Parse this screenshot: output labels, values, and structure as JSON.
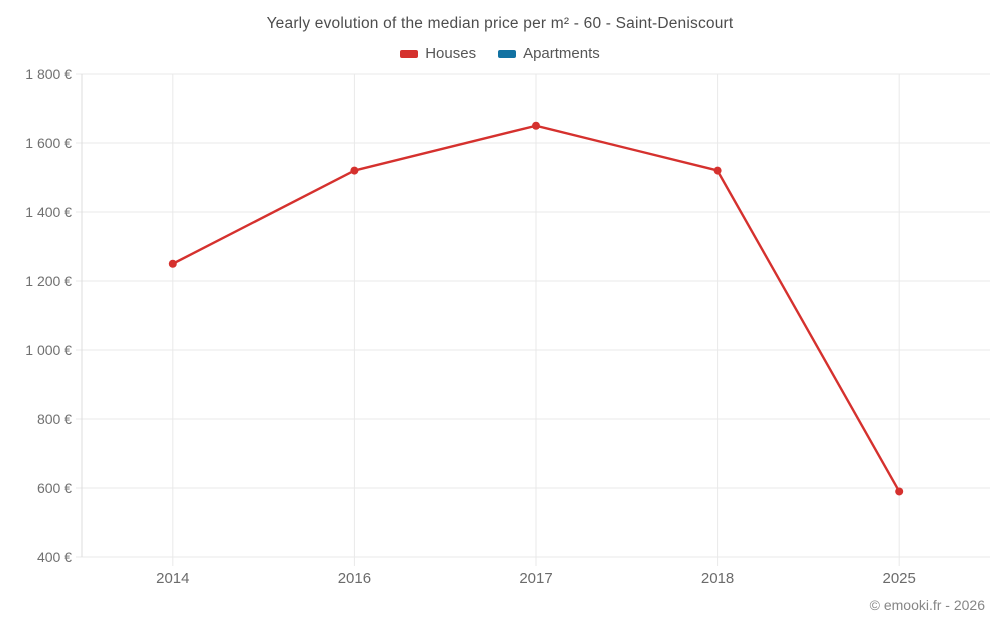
{
  "chart_data": {
    "type": "line",
    "title": "Yearly evolution of the median price per m² - 60 - Saint-Deniscourt",
    "categories": [
      "2014",
      "2016",
      "2017",
      "2018",
      "2025"
    ],
    "series": [
      {
        "name": "Houses",
        "color": "#d5312e",
        "values": [
          1250,
          1520,
          1650,
          1520,
          590
        ]
      },
      {
        "name": "Apartments",
        "color": "#1272a2",
        "values": []
      }
    ],
    "ylim": [
      400,
      1800
    ],
    "ytick_step": 200,
    "ytick_labels": [
      "400 €",
      "600 €",
      "800 €",
      "1 000 €",
      "1 200 €",
      "1 400 €",
      "1 600 €",
      "1 800 €"
    ],
    "grid": true,
    "legend_position": "top",
    "value_suffix": " €"
  },
  "footer": {
    "copyright": "© emooki.fr - 2026"
  },
  "colors": {
    "grid_line": "#e9e9e9",
    "axis_line": "#dcdcdc",
    "y_tick_label": "#707070",
    "x_tick_label": "#6b6b6b",
    "title_text": "#4d4d4d",
    "background": "#ffffff"
  }
}
